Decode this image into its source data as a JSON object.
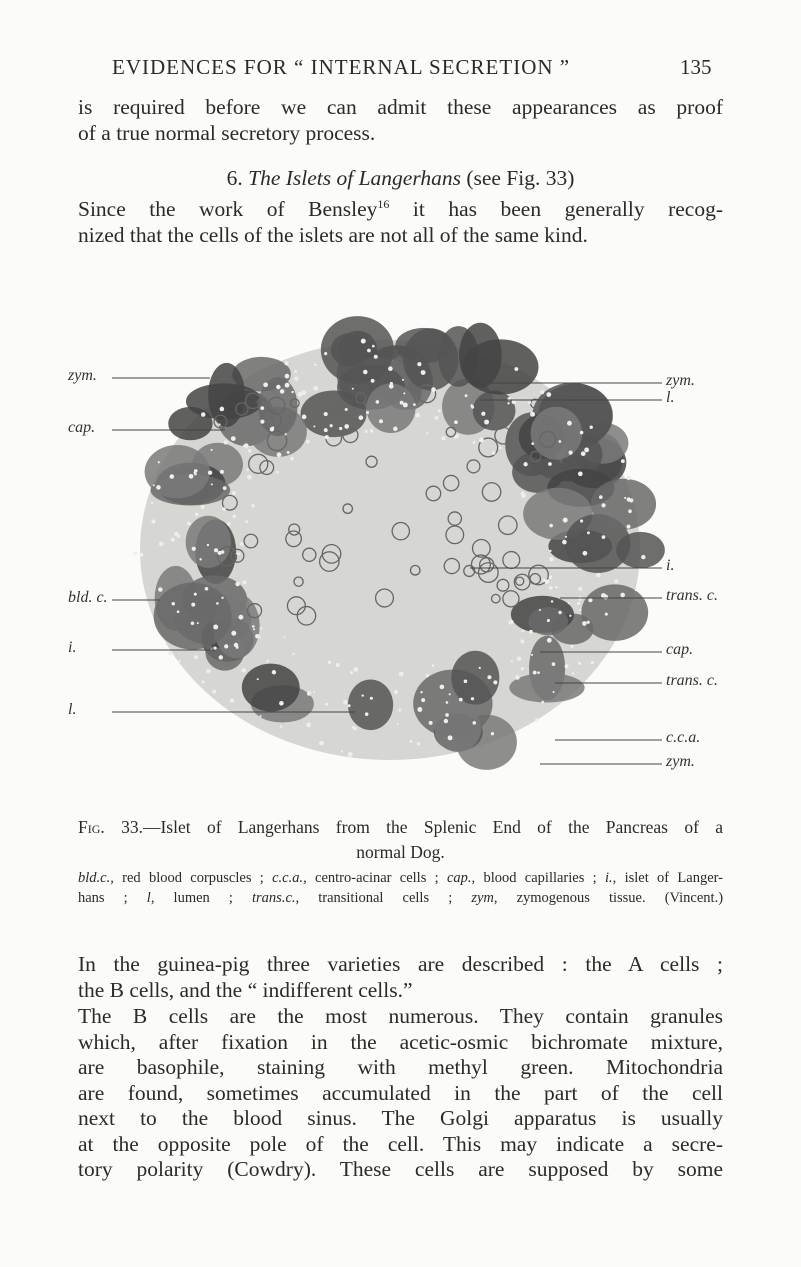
{
  "header": {
    "title": "EVIDENCES FOR “ INTERNAL SECRETION ”",
    "page": "135"
  },
  "paragraph_1": [
    "is required before we can admit these appearances as proof",
    "of a true normal secretory process."
  ],
  "section_heading": {
    "number": "6.",
    "title": "The Islets of Langerhans",
    "ref": "(see Fig. 33)"
  },
  "paragraph_2": {
    "before": "Since the work of Bensley",
    "footnote": "16",
    "after": "it has been generally recog-",
    "line_2": "nized that the cells of the islets are not all of the same kind."
  },
  "figure": {
    "labels_left": [
      "zym.",
      "cap.",
      "bld. c.",
      "i.",
      "l."
    ],
    "labels_right": [
      "zym.",
      "l.",
      "i.",
      "trans. c.",
      "cap.",
      "trans. c.",
      "c.c.a.",
      "zym."
    ],
    "caption": {
      "label": "Fig. 33.",
      "line_1": "—Islet of Langerhans from the Splenic End of the Pancreas of a",
      "line_2": "normal Dog."
    },
    "legend": [
      [
        {
          "abbr": "bld.c.",
          "text": ", red blood corpuscles ;"
        },
        {
          "abbr": "c.c.a.",
          "text": ", centro-acinar cells ;"
        },
        {
          "abbr": "cap.",
          "text": ", blood capillaries ;"
        },
        {
          "abbr": "i.",
          "text": ", islet of Langer-"
        }
      ],
      [
        {
          "text": "hans ;"
        },
        {
          "abbr": "l",
          "text": ", lumen ;"
        },
        {
          "abbr": "trans.c.",
          "text": ", transitional cells ;"
        },
        {
          "abbr": "zym",
          "text": ", zymogenous tissue."
        },
        {
          "text": "(Vincent.)"
        }
      ]
    ]
  },
  "paragraph_3": [
    "In the guinea-pig three varieties are described : the A cells ;",
    "the B cells, and the “ indifferent cells.”"
  ],
  "paragraph_4": [
    "The B cells are the most numerous. They contain granules",
    "which, after fixation in the acetic-osmic bichromate mixture,",
    "are basophile, staining with methyl green. Mitochondria",
    "are found, sometimes accumulated in the part of the cell",
    "next to the blood sinus. The Golgi apparatus is usually",
    "at the opposite pole of the cell. This may indicate a secre-",
    "tory polarity (Cowdry). These cells are supposed by some"
  ]
}
